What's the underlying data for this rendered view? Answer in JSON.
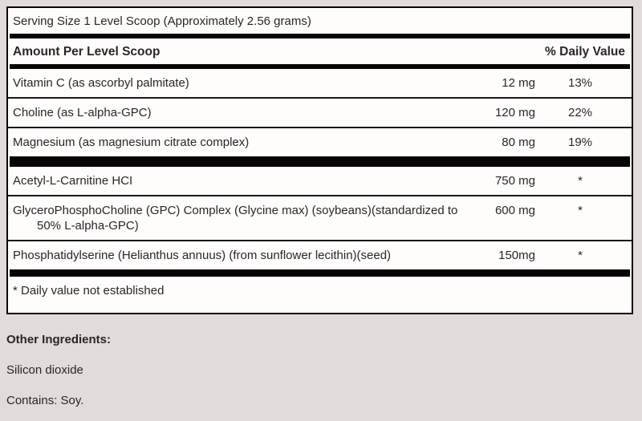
{
  "supplement_facts": {
    "serving_size": "Serving Size 1 Level Scoop (Approximately 2.56 grams)",
    "columns": {
      "amount_header": "Amount Per Level Scoop",
      "daily_value_header": "% Daily Value"
    },
    "nutrients": [
      {
        "name": "Vitamin C (as ascorbyl palmitate)",
        "amount": "12 mg",
        "daily_value": "13%"
      },
      {
        "name": "Choline (as L-alpha-GPC)",
        "amount": "120 mg",
        "daily_value": "22%"
      },
      {
        "name": "Magnesium (as magnesium citrate complex)",
        "amount": "80 mg",
        "daily_value": "19%"
      },
      {
        "name": "Acetyl-L-Carnitine HCI",
        "amount": "750 mg",
        "daily_value": "*"
      },
      {
        "name": "GlyceroPhosphoCholine (GPC) Complex (Glycine max) (soybeans)(standardized to 50% L-alpha-GPC)",
        "amount": "600 mg",
        "daily_value": "*"
      },
      {
        "name": "Phosphatidylserine (Helianthus annuus) (from sunflower lecithin)(seed)",
        "amount": "150mg",
        "daily_value": "*"
      }
    ],
    "footnote": "* Daily value not established",
    "other_ingredients": {
      "label": "Other Ingredients:",
      "items": "Silicon dioxide",
      "allergen": "Contains: Soy."
    },
    "colors": {
      "page_background": "#e1dcda",
      "panel_background": "#fefdfc",
      "rule_black": "#070505",
      "text": "#2a2526"
    }
  }
}
